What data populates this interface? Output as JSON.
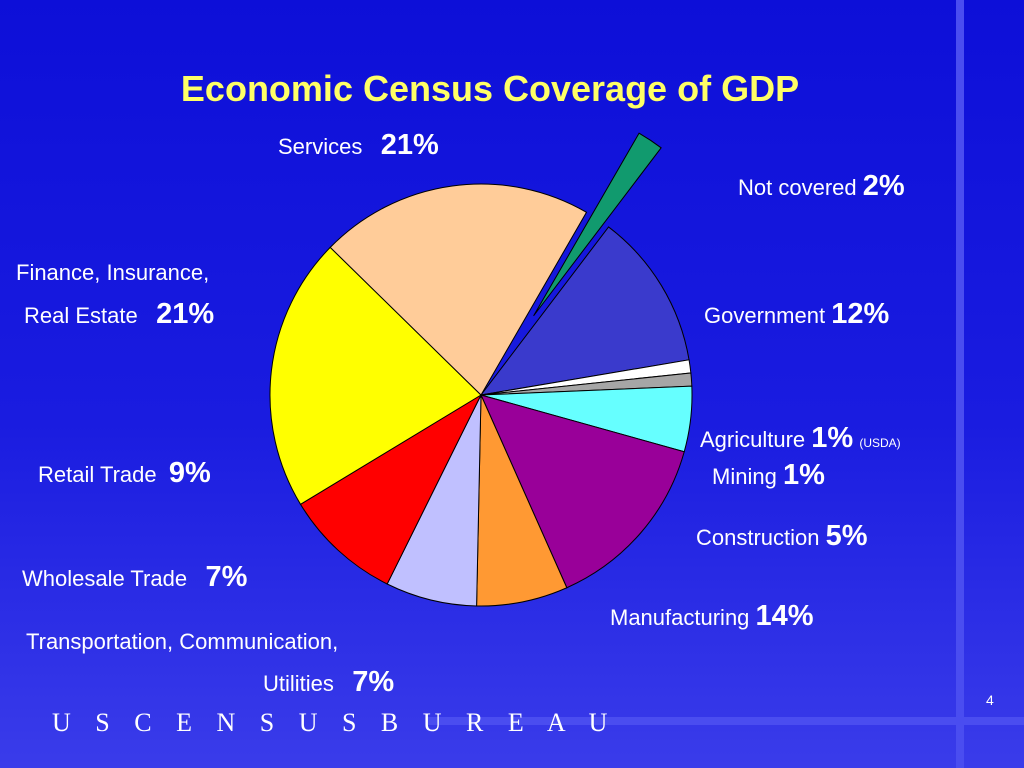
{
  "slide": {
    "title": "Economic Census Coverage of GDP",
    "brand": "U S C E N S U S B U R E A U",
    "page_number": "4"
  },
  "labels": {
    "services": "Services",
    "not_covered": "Not covered",
    "government": "Government",
    "agriculture": "Agriculture",
    "agriculture_note": "(USDA)",
    "mining": "Mining",
    "construction": "Construction",
    "manufacturing": "Manufacturing",
    "tcu_line1": "Transportation, Communication,",
    "tcu_line2": "Utilities",
    "wholesale": "Wholesale Trade",
    "retail": "Retail Trade",
    "fire_line1": "Finance, Insurance,",
    "fire_line2": "Real Estate"
  },
  "pcts": {
    "services": "21%",
    "not_covered": "2%",
    "government": "12%",
    "agriculture": "1%",
    "mining": "1%",
    "construction": "5%",
    "manufacturing": "14%",
    "tcu": "7%",
    "wholesale": "7%",
    "retail": "9%",
    "fire": "21%"
  },
  "colors": {
    "background": "#1414dc",
    "title": "#ffff66"
  },
  "chart_data": {
    "type": "pie",
    "title": "Economic Census Coverage of GDP",
    "unit": "%",
    "slices": [
      {
        "label": "Not covered",
        "value": 2,
        "color": "#119a6e",
        "exploded": true
      },
      {
        "label": "Government",
        "value": 12,
        "color": "#3a3acc"
      },
      {
        "label": "Agriculture",
        "value": 1,
        "color": "#ffffff"
      },
      {
        "label": "Mining",
        "value": 1,
        "color": "#a6a6a6"
      },
      {
        "label": "Construction",
        "value": 5,
        "color": "#66ffff"
      },
      {
        "label": "Manufacturing",
        "value": 14,
        "color": "#990099"
      },
      {
        "label": "Transportation, Communication, Utilities",
        "value": 7,
        "color": "#ff9933"
      },
      {
        "label": "Wholesale Trade",
        "value": 7,
        "color": "#c0c0ff"
      },
      {
        "label": "Retail Trade",
        "value": 9,
        "color": "#ff0000"
      },
      {
        "label": "Finance, Insurance, Real Estate",
        "value": 21,
        "color": "#ffff00"
      },
      {
        "label": "Services",
        "value": 21,
        "color": "#ffcc99"
      }
    ]
  }
}
